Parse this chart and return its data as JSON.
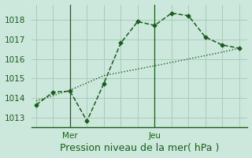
{
  "bg_color": "#cce8dc",
  "grid_color": "#aaccbb",
  "line_color": "#1a5c1a",
  "ylabel_values": [
    1013,
    1014,
    1015,
    1016,
    1017,
    1018
  ],
  "xlabel": "Pression niveau de la mer( hPa )",
  "xlabel_fontsize": 9,
  "tick_fontsize": 7.5,
  "vline_positions": [
    2,
    7
  ],
  "vline_labels": [
    "Mer",
    "Jeu"
  ],
  "series1_x": [
    0,
    1,
    2,
    3,
    4,
    5,
    6,
    7,
    8,
    9,
    10,
    11,
    12
  ],
  "series1_y": [
    1013.65,
    1014.3,
    1014.35,
    1012.82,
    1014.75,
    1016.82,
    1017.92,
    1017.72,
    1018.35,
    1018.22,
    1017.12,
    1016.72,
    1016.55
  ],
  "series2_x": [
    0,
    2,
    4,
    7,
    9,
    11,
    12
  ],
  "series2_y": [
    1013.85,
    1014.4,
    1015.15,
    1015.65,
    1016.0,
    1016.35,
    1016.55
  ],
  "ylim": [
    1012.5,
    1018.8
  ],
  "xlim": [
    -0.3,
    12.5
  ],
  "n_vgrid": 13
}
